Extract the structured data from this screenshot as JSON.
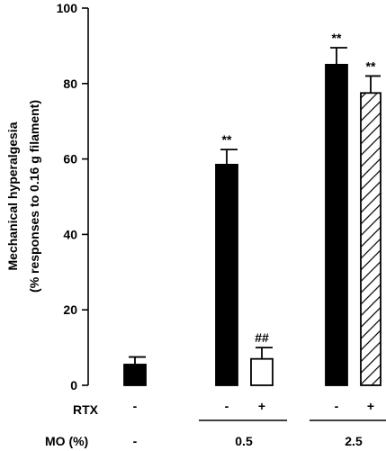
{
  "chart_data": {
    "type": "bar",
    "ylabel_line1": "Mechanical hyperalgesia",
    "ylabel_line2": "(% responses to 0.16 g filament)",
    "ylim": [
      0,
      100
    ],
    "yticks": [
      0,
      20,
      40,
      60,
      80,
      100
    ],
    "grid": false,
    "rows": [
      {
        "label": "RTX",
        "values": [
          "-",
          "-",
          "+",
          "-",
          "+"
        ]
      },
      {
        "label": "MO (%)",
        "values": [
          "-",
          "0.5",
          "2.5"
        ]
      }
    ],
    "bars": [
      {
        "value": 5.5,
        "error": 2.0,
        "fill": "solid",
        "annotation": ""
      },
      {
        "value": 58.5,
        "error": 4.0,
        "fill": "solid",
        "annotation": "**"
      },
      {
        "value": 7.0,
        "error": 3.0,
        "fill": "open",
        "annotation": "##"
      },
      {
        "value": 85.0,
        "error": 4.5,
        "fill": "solid",
        "annotation": "**"
      },
      {
        "value": 77.5,
        "error": 4.5,
        "fill": "hatched",
        "annotation": "**"
      }
    ],
    "colors": {
      "bar": "#000000",
      "open": "#ffffff"
    }
  }
}
